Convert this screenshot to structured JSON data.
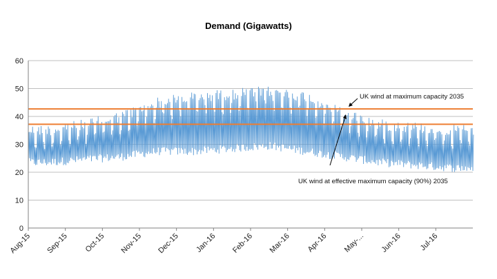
{
  "chart_data": {
    "type": "line",
    "title": "Demand (Gigawatts)",
    "xlabel": "",
    "ylabel": "",
    "ylim": [
      0,
      60
    ],
    "yticks": [
      0,
      10,
      20,
      30,
      40,
      50,
      60
    ],
    "grid": true,
    "categories": [
      "Aug-15",
      "Sep-15",
      "Oct-15",
      "Nov-15",
      "Dec-15",
      "Jan-16",
      "Feb-16",
      "Mar-16",
      "Apr-16",
      "May-...",
      "Jun-16",
      "Jul-16"
    ],
    "series": [
      {
        "name": "Demand",
        "color": "#5b9bd5",
        "monthly_daily_peak": [
          37,
          39,
          42,
          47,
          49,
          50,
          51,
          49,
          43,
          39,
          38,
          37
        ],
        "monthly_overnight_min": [
          22,
          23,
          24,
          26,
          26,
          27,
          28,
          26,
          24,
          22,
          21,
          20
        ]
      }
    ],
    "reference_lines": [
      {
        "name": "UK wind at maximum capacity 2035",
        "value": 42.7,
        "color": "#ed7d31"
      },
      {
        "name": "UK wind at effective maximum capacity (90%) 2035",
        "value": 37.2,
        "color": "#ed7d31"
      }
    ],
    "annotations": [
      {
        "text": "UK wind at maximum capacity 2035"
      },
      {
        "text": "UK wind at effective maximum capacity (90%) 2035"
      }
    ]
  }
}
